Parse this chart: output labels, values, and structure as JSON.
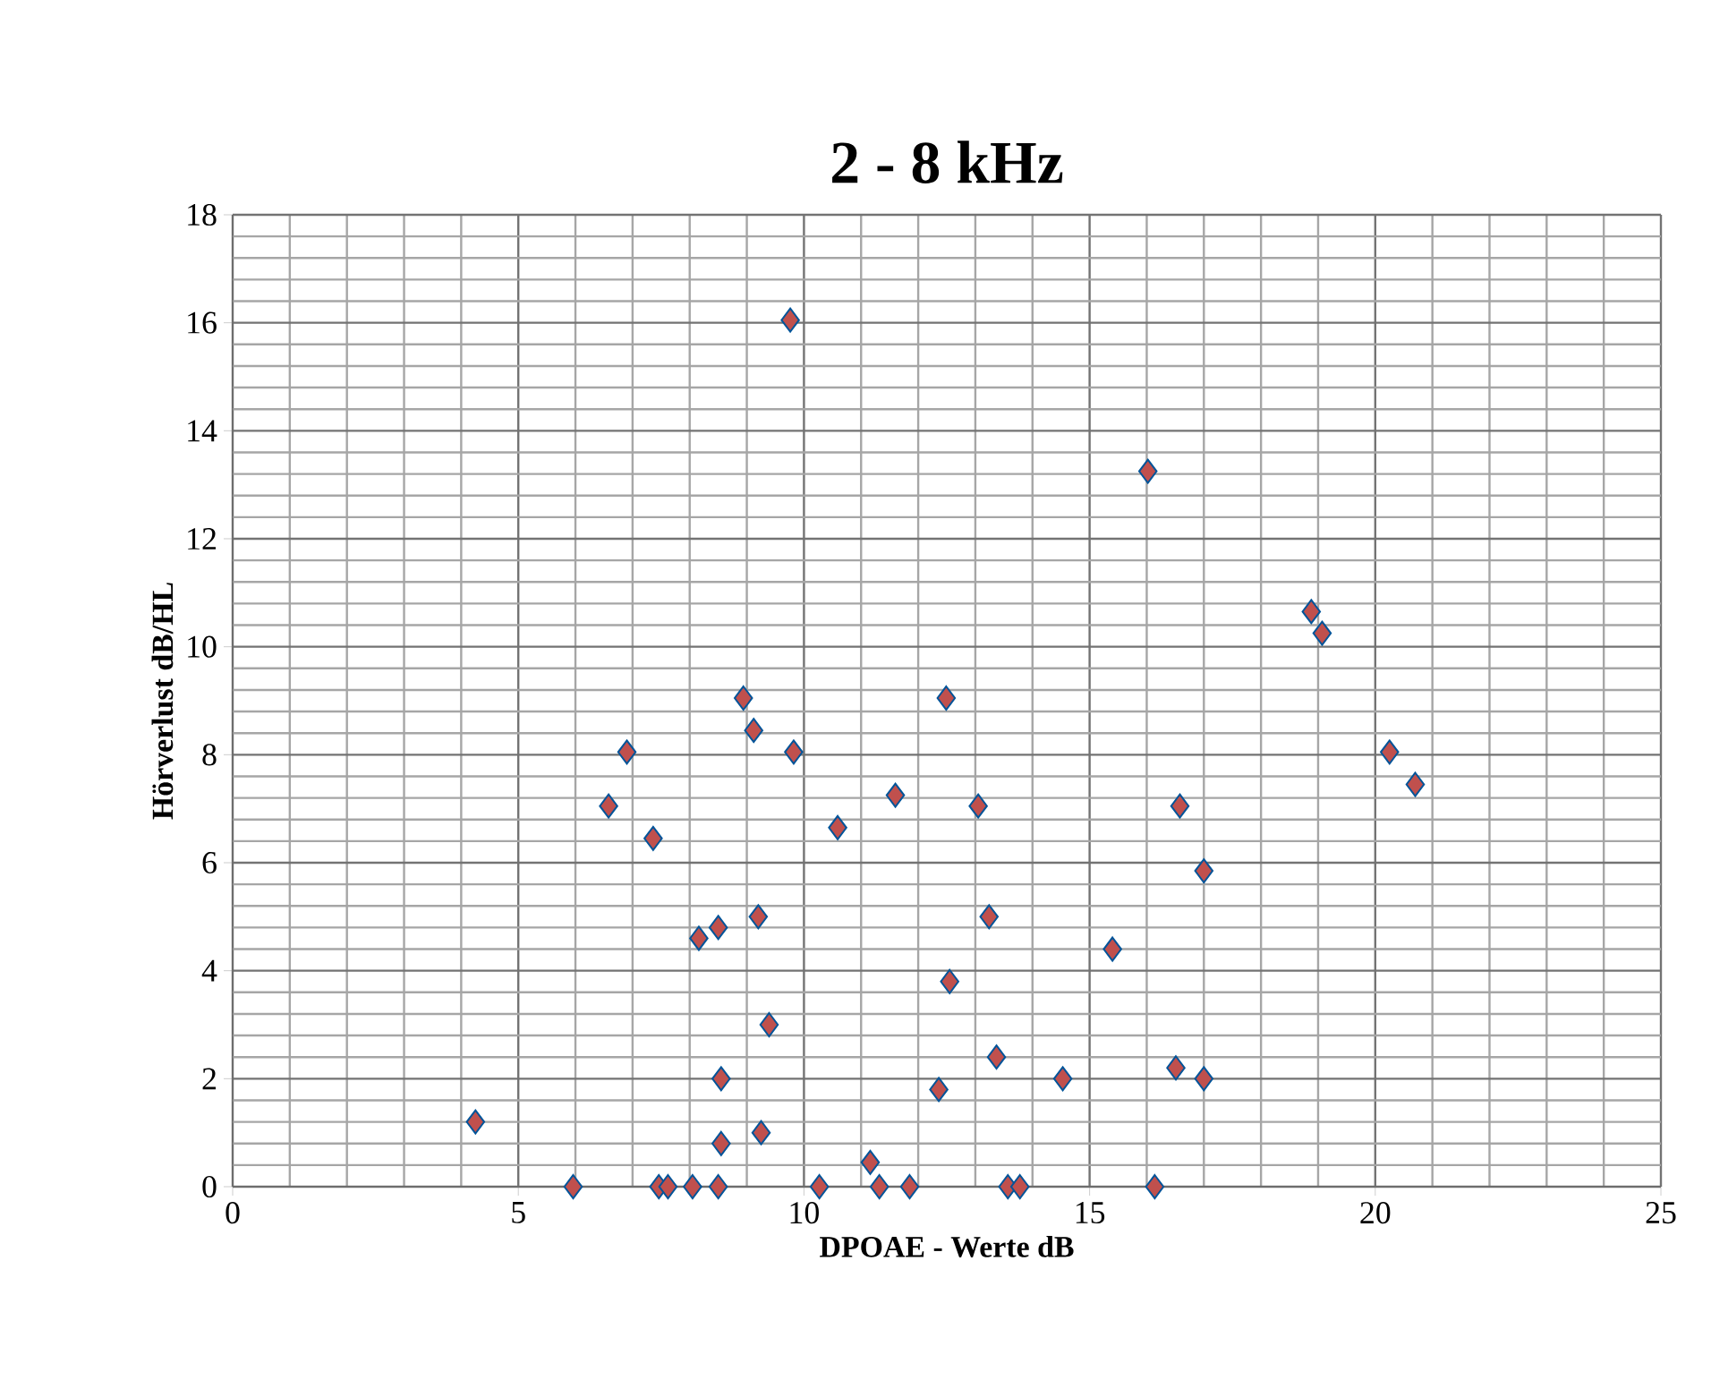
{
  "chart_data": {
    "type": "scatter",
    "title": "2 - 8 kHz",
    "xlabel": "DPOAE  - Werte  dB",
    "ylabel": "Hörverlust  dB/HL",
    "xlim": [
      0,
      25
    ],
    "ylim": [
      0,
      18
    ],
    "xticks": [
      0,
      5,
      10,
      15,
      20,
      25
    ],
    "yticks": [
      0,
      2,
      4,
      6,
      8,
      10,
      12,
      14,
      16,
      18
    ],
    "grid": true,
    "marker": "diamond",
    "series": [
      {
        "color": "#c0504d",
        "x": [
          4.25,
          5.96,
          6.9,
          6.58,
          7.36,
          7.46,
          7.62,
          8.05,
          8.5,
          8.16,
          8.5,
          8.94,
          9.12,
          9.82,
          9.76,
          9.2,
          9.39,
          8.55,
          8.55,
          9.25,
          10.27,
          10.59,
          11.6,
          11.16,
          11.32,
          11.85,
          12.49,
          12.36,
          12.55,
          13.05,
          13.24,
          13.37,
          13.57,
          13.78,
          16.02,
          18.88,
          19.07,
          20.25,
          20.7,
          16.58,
          17.0,
          15.4,
          16.51,
          17.0,
          14.53,
          16.14
        ],
        "values": [
          1.2,
          0,
          8.05,
          7.05,
          6.45,
          0,
          0,
          0,
          0,
          4.6,
          4.8,
          9.05,
          8.45,
          8.05,
          16.05,
          5.0,
          3.0,
          2.0,
          0.8,
          1.0,
          0,
          6.65,
          7.25,
          0.45,
          0,
          0,
          9.05,
          1.8,
          3.8,
          7.05,
          5.0,
          2.4,
          0,
          0,
          13.25,
          10.65,
          10.25,
          8.05,
          7.45,
          7.05,
          5.85,
          4.4,
          2.2,
          2.0,
          2.0,
          0
        ]
      }
    ]
  }
}
